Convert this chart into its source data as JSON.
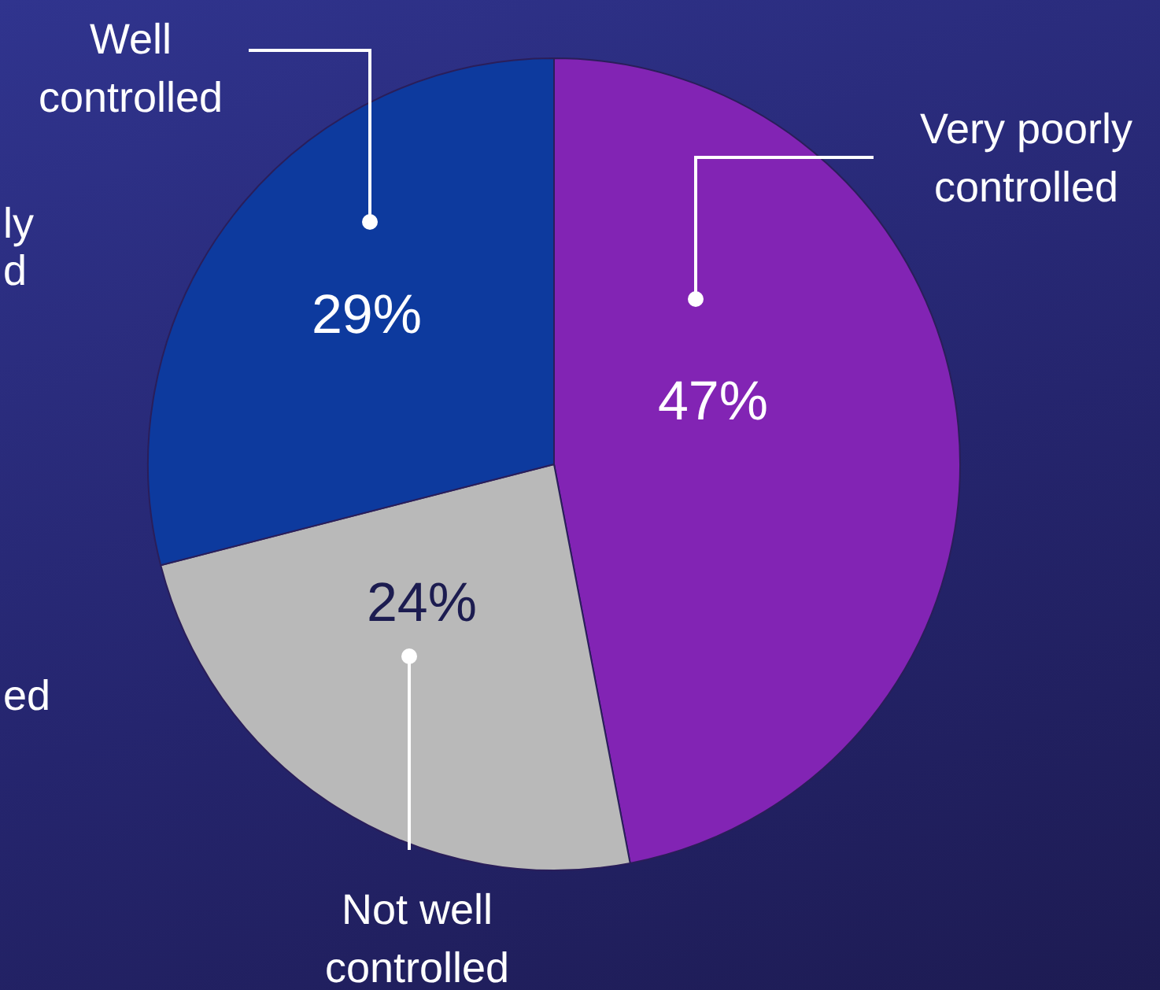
{
  "chart_data": {
    "type": "pie",
    "categories": [
      "Very poorly controlled",
      "Not well controlled",
      "Well controlled"
    ],
    "values": [
      47,
      24,
      29
    ],
    "value_labels": [
      "47%",
      "24%",
      "29%"
    ],
    "colors": [
      "#8224b4",
      "#b9b9b9",
      "#0d3a9e"
    ],
    "annotations": [
      "ly",
      "d",
      "ed"
    ]
  }
}
